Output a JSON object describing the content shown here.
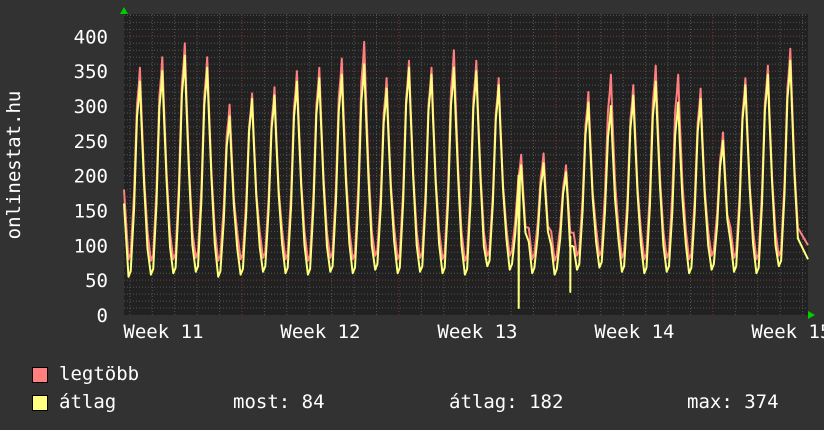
{
  "chart_data": {
    "type": "line",
    "ylabel": "onlinestat.hu",
    "ylim": [
      0,
      432
    ],
    "yticks": [
      0,
      50,
      100,
      150,
      200,
      250,
      300,
      350,
      400
    ],
    "x_unit": "days from start of plot",
    "xlim": [
      0,
      30.5
    ],
    "week_boundaries": [
      5.26,
      12.26,
      19.26,
      26.26
    ],
    "xtick_labels": [
      {
        "label": "Week 11",
        "x": 1.76
      },
      {
        "label": "Week 12",
        "x": 8.76
      },
      {
        "label": "Week 13",
        "x": 15.76
      },
      {
        "label": "Week 14",
        "x": 22.76
      },
      {
        "label": "Week 15",
        "x": 29.76
      }
    ],
    "grid": true,
    "series": [
      {
        "name": "legtöbb",
        "color": "#ff7f7f",
        "start": 180,
        "end": 100,
        "daily_peaks": [
          355,
          370,
          390,
          370,
          302,
          318,
          327,
          350,
          355,
          368,
          392,
          340,
          365,
          355,
          380,
          365,
          340,
          230,
          232,
          215,
          320,
          345,
          330,
          358,
          345,
          325,
          262,
          340,
          358,
          382
        ],
        "daily_troughs": [
          80,
          78,
          80,
          82,
          78,
          80,
          82,
          80,
          78,
          82,
          80,
          85,
          80,
          82,
          80,
          78,
          85,
          85,
          80,
          78,
          85,
          85,
          82,
          80,
          82,
          80,
          85,
          82,
          80,
          85
        ],
        "dips": []
      },
      {
        "name": "átlag",
        "color": "#ffff7f",
        "start": 160,
        "end": 80,
        "daily_peaks": [
          335,
          350,
          372,
          355,
          285,
          310,
          315,
          335,
          340,
          345,
          360,
          325,
          355,
          345,
          355,
          350,
          330,
          215,
          218,
          205,
          305,
          300,
          315,
          335,
          305,
          310,
          250,
          330,
          345,
          365
        ],
        "daily_troughs": [
          55,
          58,
          60,
          62,
          55,
          58,
          62,
          60,
          58,
          62,
          60,
          65,
          60,
          62,
          60,
          58,
          70,
          65,
          60,
          58,
          65,
          68,
          62,
          60,
          62,
          60,
          65,
          62,
          60,
          70
        ],
        "dips": [
          {
            "x": 17.6,
            "value": 10
          },
          {
            "x": 19.9,
            "value": 33
          }
        ]
      }
    ]
  },
  "legend": {
    "items": [
      {
        "label": "legtöbb",
        "color": "#ff7f7f"
      },
      {
        "label": "átlag",
        "color": "#ffff7f"
      }
    ],
    "most": "most: 84",
    "atlag": "átlag: 182",
    "max": "max: 374"
  }
}
